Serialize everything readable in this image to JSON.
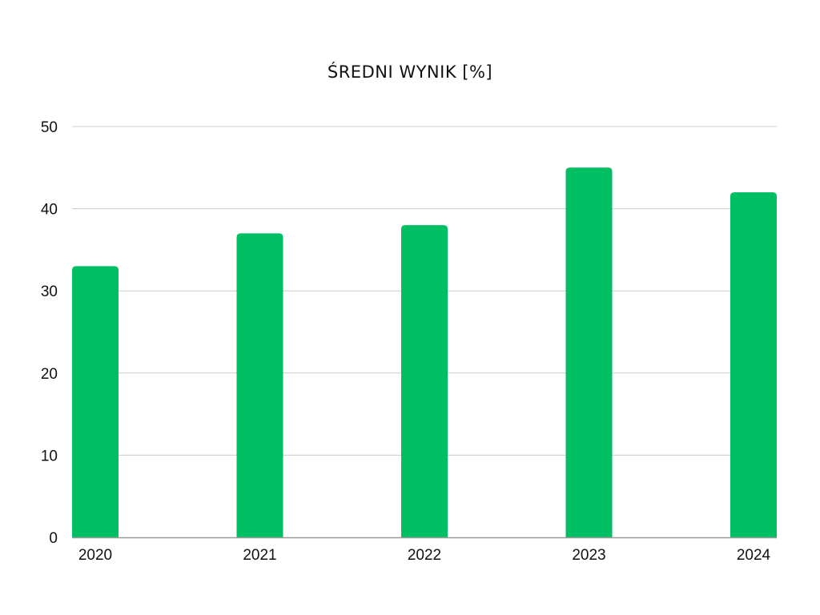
{
  "chart_data": {
    "type": "bar",
    "title": "ŚREDNI WYNIK [%]",
    "xlabel": "",
    "ylabel": "",
    "categories": [
      "2020",
      "2021",
      "2022",
      "2023",
      "2024"
    ],
    "values": [
      33,
      37,
      38,
      45,
      42
    ],
    "ylim": [
      0,
      50
    ],
    "yticks": [
      0,
      10,
      20,
      30,
      40,
      50
    ],
    "grid": true,
    "legend": "none",
    "colors": {
      "bar": "#00BF63",
      "grid": "#CCCCCC",
      "axis": "#999999",
      "text": "#111111"
    }
  }
}
